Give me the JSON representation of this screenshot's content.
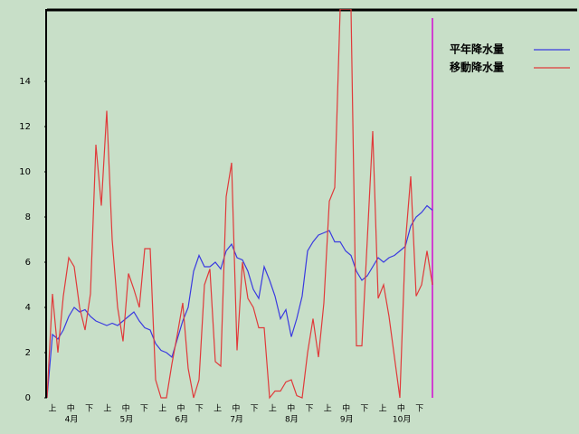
{
  "chart_data": {
    "type": "line",
    "dekads": [
      "上",
      "中",
      "下",
      "上",
      "中",
      "下",
      "上",
      "中",
      "下",
      "上",
      "中",
      "下",
      "上",
      "中",
      "下",
      "上",
      "中",
      "下",
      "上",
      "中",
      "下"
    ],
    "months": [
      "4月",
      "5月",
      "6月",
      "7月",
      "8月",
      "9月",
      "10月"
    ],
    "ylim": [
      0,
      17.2
    ],
    "yticks": [
      0,
      2,
      4,
      6,
      8,
      10,
      12,
      14
    ],
    "legend": "right",
    "series": [
      {
        "name": "平年降水量",
        "color": "#3a3ae0",
        "values": [
          0,
          2.8,
          2.6,
          3.0,
          3.6,
          4.0,
          3.8,
          3.9,
          3.6,
          3.4,
          3.3,
          3.2,
          3.3,
          3.2,
          3.4,
          3.6,
          3.8,
          3.4,
          3.1,
          3.0,
          2.4,
          2.1,
          2.0,
          1.8,
          2.6,
          3.4,
          4.0,
          5.6,
          6.3,
          5.8,
          5.8,
          6.0,
          5.7,
          6.5,
          6.8,
          6.2,
          6.1,
          5.6,
          4.8,
          4.4,
          5.8,
          5.2,
          4.5,
          3.5,
          3.9,
          2.7,
          3.5,
          4.5,
          6.5,
          6.9,
          7.2,
          7.3,
          7.4,
          6.9,
          6.9,
          6.5,
          6.3,
          5.6,
          5.2,
          5.4,
          5.8,
          6.2,
          6.0,
          6.2,
          6.3,
          6.5,
          6.7,
          7.6,
          8.0,
          8.2,
          8.5,
          8.3
        ]
      },
      {
        "name": "移動降水量",
        "color": "#e03a3a",
        "values": [
          0,
          4.6,
          2.0,
          4.5,
          6.2,
          5.8,
          4.0,
          3.0,
          4.6,
          11.2,
          8.5,
          12.7,
          7.0,
          4.0,
          2.5,
          5.5,
          4.8,
          4.0,
          6.6,
          6.6,
          0.8,
          0,
          0,
          1.5,
          2.8,
          4.2,
          1.3,
          0,
          0.8,
          5.0,
          5.7,
          1.6,
          1.4,
          8.9,
          10.4,
          2.1,
          6.0,
          4.4,
          4.0,
          3.1,
          3.1,
          0,
          0.3,
          0.3,
          0.7,
          0.8,
          0.1,
          0,
          2.0,
          3.5,
          1.8,
          4.2,
          8.7,
          9.3,
          17.2,
          17.2,
          17.2,
          2.3,
          2.3,
          7.0,
          11.8,
          4.4,
          5.0,
          3.6,
          1.8,
          0,
          6.8,
          9.8,
          4.5,
          5.0,
          6.5,
          5.0
        ]
      }
    ]
  }
}
